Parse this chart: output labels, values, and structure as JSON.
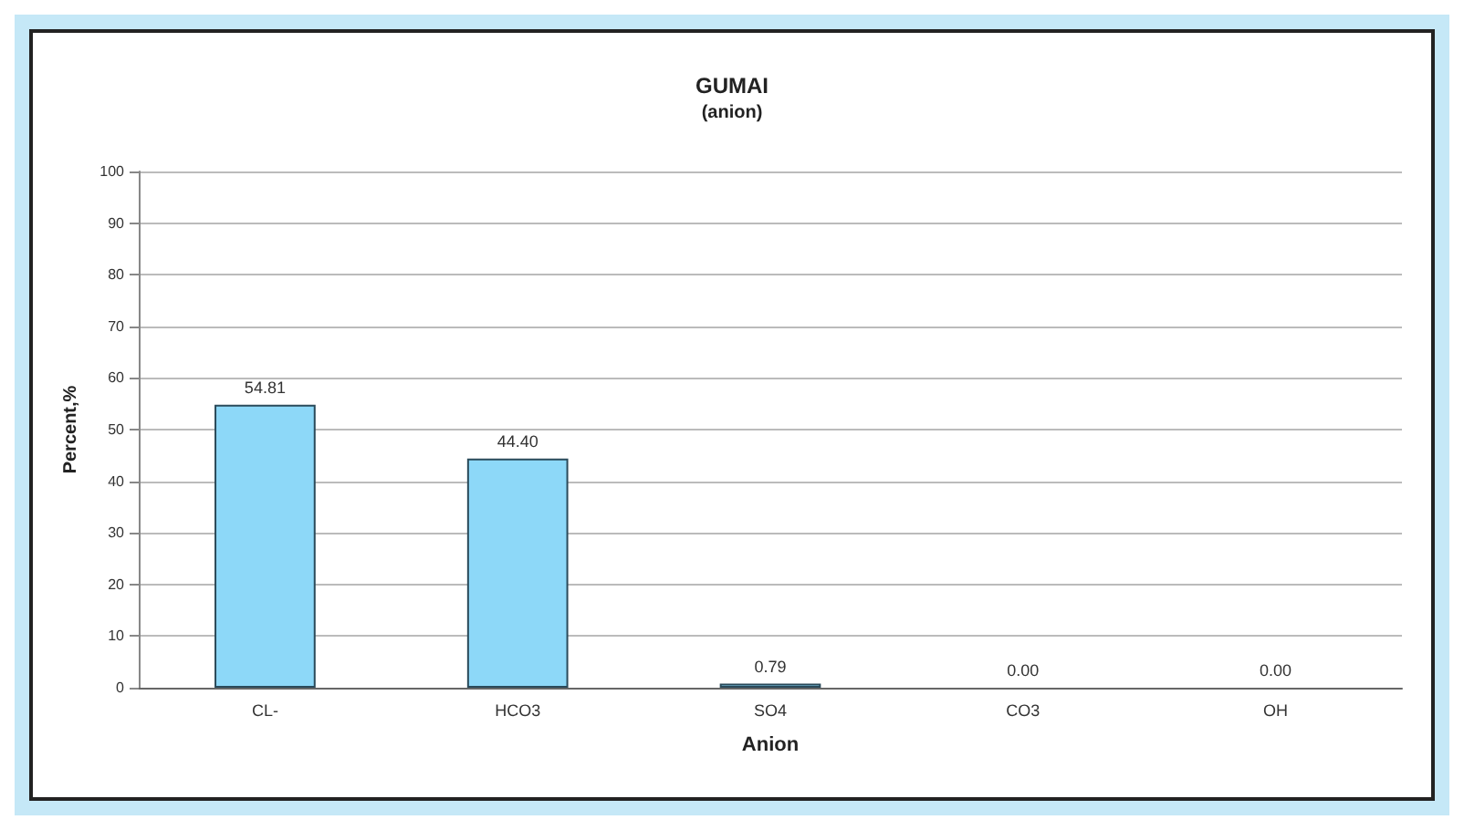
{
  "chart_data": {
    "type": "bar",
    "title": "GUMAI",
    "subtitle": "(anion)",
    "xlabel": "Anion",
    "ylabel": "Percent,%",
    "categories": [
      "CL-",
      "HCO3",
      "SO4",
      "CO3",
      "OH"
    ],
    "values": [
      54.81,
      44.4,
      0.79,
      0.0,
      0.0
    ],
    "value_labels": [
      "54.81",
      "44.40",
      "0.79",
      "0.00",
      "0.00"
    ],
    "color": "#8dd8f8",
    "ylim": [
      0,
      100
    ],
    "yticks": [
      0,
      10,
      20,
      30,
      40,
      50,
      60,
      70,
      80,
      90,
      100
    ],
    "grid": "y"
  }
}
